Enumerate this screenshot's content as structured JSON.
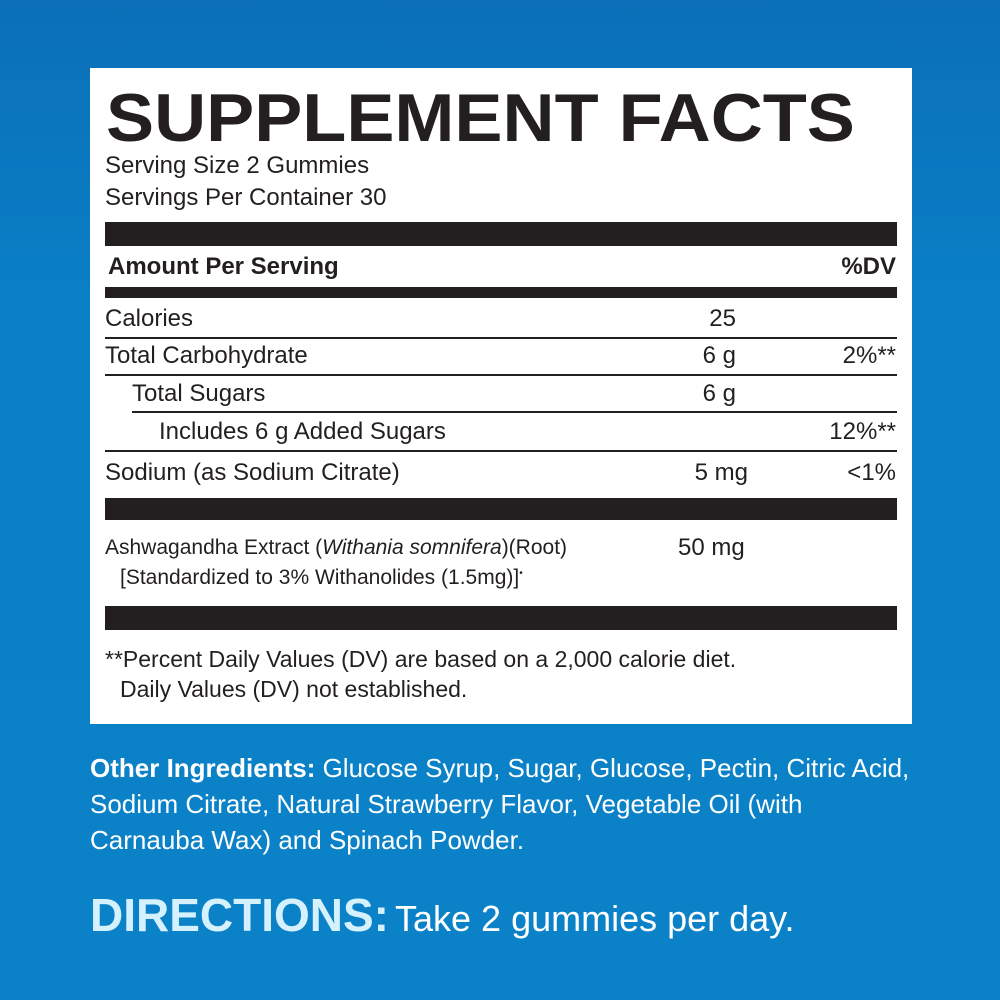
{
  "label": {
    "title": "SUPPLEMENT FACTS",
    "serving_size": "Serving Size 2 Gummies",
    "servings_per_container": "Servings Per Container 30",
    "amount_header": "Amount Per Serving",
    "dv_header": "%DV",
    "rows": [
      {
        "name": "Calories",
        "amount": "25",
        "dv": ""
      },
      {
        "name": "Total Carbohydrate",
        "amount": "6 g",
        "dv": "2%**"
      },
      {
        "name": "Total Sugars",
        "amount": "6 g",
        "dv": ""
      },
      {
        "name": "Includes 6 g Added Sugars",
        "amount": "",
        "dv": "12%**"
      },
      {
        "name": "Sodium (as Sodium Citrate)",
        "amount": "5 mg",
        "dv": "<1%"
      }
    ],
    "ingredient": {
      "name": "Ashwagandha Extract (",
      "latin": "Withania somnifera",
      "part": ")(Root)",
      "amount": "50 mg",
      "standardized": "[Standardized to 3% Withanolides (1.5mg)]",
      "mark": "•"
    },
    "footnote1": "**Percent Daily Values (DV) are based on a 2,000 calorie diet.",
    "footnote2": "Daily Values (DV) not established."
  },
  "other_ingredients": {
    "label": "Other Ingredients:",
    "text": " Glucose Syrup, Sugar, Glucose, Pectin, Citric Acid, Sodium Citrate, Natural Strawberry Flavor, Vegetable Oil (with Carnauba Wax) and Spinach Powder."
  },
  "directions": {
    "label": "DIRECTIONS:",
    "text": "Take 2 gummies per day."
  },
  "colors": {
    "background": "#0a80c6",
    "directions_label": "#d4f1fd",
    "ink": "#231f20"
  }
}
